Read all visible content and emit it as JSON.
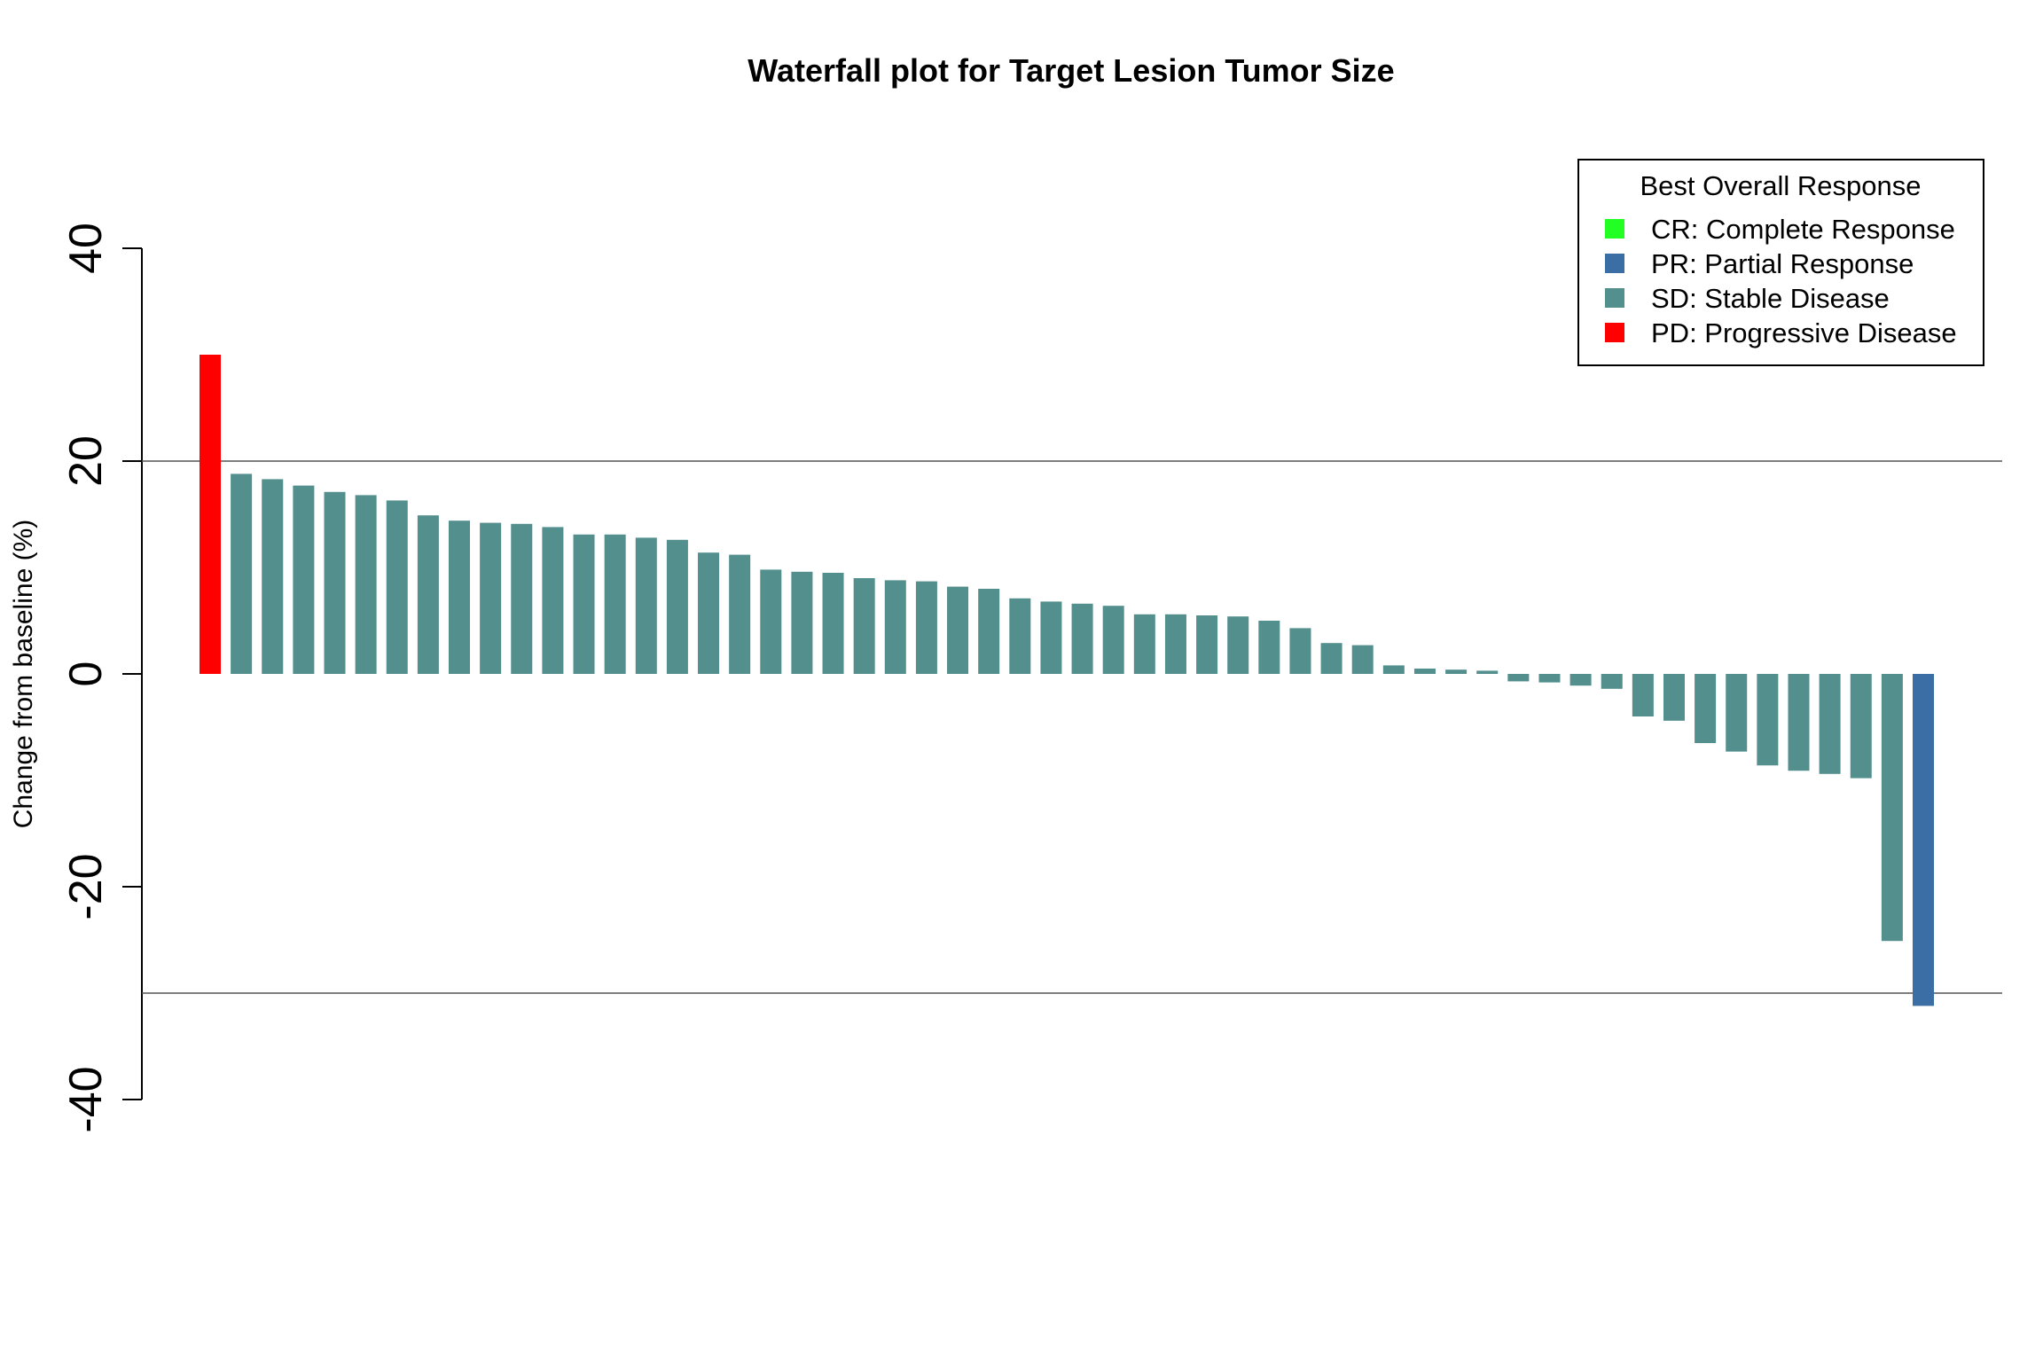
{
  "chart_data": {
    "type": "bar",
    "title": "Waterfall plot for Target Lesion Tumor Size",
    "xlabel": "",
    "ylabel": "Change from baseline (%)",
    "ylim": [
      -40,
      40
    ],
    "yticks": [
      "-40",
      "-20",
      "0",
      "20",
      "40"
    ],
    "reference_lines": [
      20,
      -30
    ],
    "legend": {
      "title": "Best Overall Response",
      "position": "top-right",
      "entries": [
        {
          "label": "CR: Complete Response",
          "color": "#22ff22"
        },
        {
          "label": "PR: Partial Response",
          "color": "#3a6ea5"
        },
        {
          "label": "SD: Stable Disease",
          "color": "#528f8d"
        },
        {
          "label": "PD: Progressive Disease",
          "color": "#ff0000"
        }
      ]
    },
    "values": [
      30.0,
      18.8,
      18.3,
      17.7,
      17.1,
      16.8,
      16.3,
      14.9,
      14.4,
      14.2,
      14.1,
      13.8,
      13.1,
      13.1,
      12.8,
      12.6,
      11.4,
      11.2,
      9.8,
      9.6,
      9.5,
      9.0,
      8.8,
      8.7,
      8.2,
      8.0,
      7.1,
      6.8,
      6.6,
      6.4,
      5.6,
      5.6,
      5.5,
      5.4,
      5.0,
      4.3,
      2.9,
      2.7,
      0.8,
      0.5,
      0.4,
      0.3,
      -0.7,
      -0.8,
      -1.1,
      -1.4,
      -4.0,
      -4.4,
      -6.5,
      -7.3,
      -8.6,
      -9.1,
      -9.4,
      -9.8,
      -25.1,
      -31.2
    ],
    "categories": [
      "PD",
      "SD",
      "SD",
      "SD",
      "SD",
      "SD",
      "SD",
      "SD",
      "SD",
      "SD",
      "SD",
      "SD",
      "SD",
      "SD",
      "SD",
      "SD",
      "SD",
      "SD",
      "SD",
      "SD",
      "SD",
      "SD",
      "SD",
      "SD",
      "SD",
      "SD",
      "SD",
      "SD",
      "SD",
      "SD",
      "SD",
      "SD",
      "SD",
      "SD",
      "SD",
      "SD",
      "SD",
      "SD",
      "SD",
      "SD",
      "SD",
      "SD",
      "SD",
      "SD",
      "SD",
      "SD",
      "SD",
      "SD",
      "SD",
      "SD",
      "SD",
      "SD",
      "SD",
      "SD",
      "SD",
      "PR"
    ],
    "colors": {
      "CR": "#22ff22",
      "PR": "#3a6ea5",
      "SD": "#528f8d",
      "PD": "#ff0000"
    }
  }
}
